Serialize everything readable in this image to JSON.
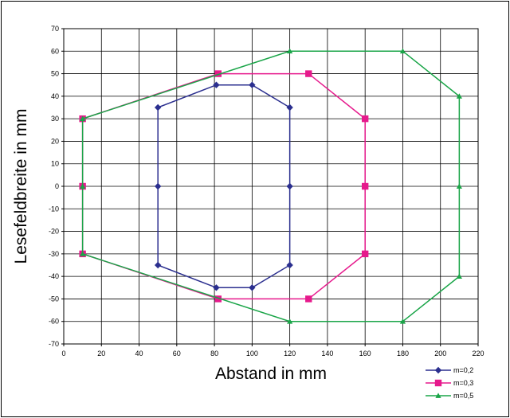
{
  "chart_data": {
    "type": "line",
    "xlabel": "Abstand in mm",
    "ylabel": "Lesefeldbreite in mm",
    "xlim": [
      0,
      220
    ],
    "ylim": [
      -70,
      70
    ],
    "x_ticks": [
      0,
      20,
      40,
      60,
      80,
      100,
      120,
      140,
      160,
      180,
      200,
      220
    ],
    "y_ticks": [
      70,
      60,
      50,
      40,
      30,
      20,
      10,
      0,
      -10,
      -20,
      -30,
      -40,
      -50,
      -60,
      -70
    ],
    "grid": true,
    "legend_position": "bottom-right",
    "series": [
      {
        "name": "m=0,2",
        "color": "#2b2f8f",
        "marker": "diamond",
        "x": [
          50,
          50,
          50,
          81,
          100,
          120,
          120,
          120,
          100,
          81,
          50
        ],
        "y": [
          35,
          0,
          -35,
          -45,
          -45,
          -35,
          0,
          35,
          45,
          45,
          35
        ]
      },
      {
        "name": "m=0,3",
        "color": "#e6198c",
        "marker": "square",
        "x": [
          10,
          10,
          10,
          82,
          130,
          160,
          160,
          160,
          130,
          82,
          10
        ],
        "y": [
          30,
          0,
          -30,
          -50,
          -50,
          -30,
          0,
          30,
          50,
          50,
          30
        ]
      },
      {
        "name": "m=0,5",
        "color": "#1aa548",
        "marker": "triangle",
        "x": [
          10,
          10,
          10,
          120,
          180,
          210,
          210,
          210,
          180,
          120,
          10
        ],
        "y": [
          30,
          0,
          -30,
          -60,
          -60,
          -40,
          0,
          40,
          60,
          60,
          30
        ]
      }
    ]
  }
}
